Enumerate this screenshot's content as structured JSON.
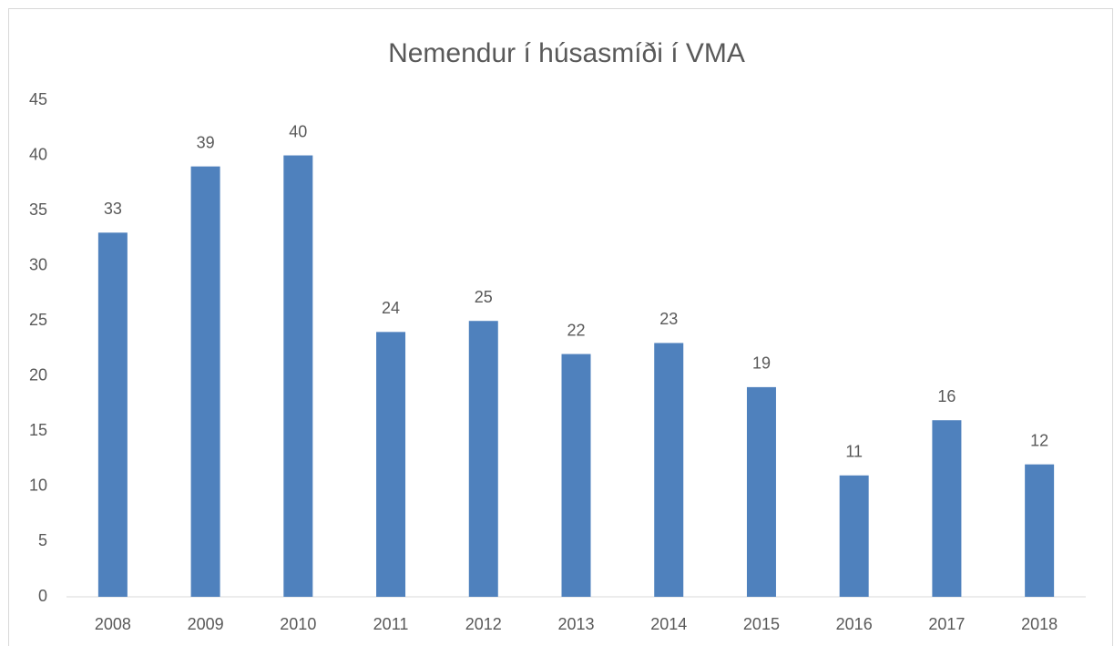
{
  "chart_data": {
    "type": "bar",
    "title": "Nemendur í húsasmíði í VMA",
    "categories": [
      "2008",
      "2009",
      "2010",
      "2011",
      "2012",
      "2013",
      "2014",
      "2015",
      "2016",
      "2017",
      "2018"
    ],
    "values": [
      33,
      39,
      40,
      24,
      25,
      22,
      23,
      19,
      11,
      16,
      12
    ],
    "color": "#4f81bd",
    "ylim": [
      0,
      45
    ],
    "yticks": [
      0,
      5,
      10,
      15,
      20,
      25,
      30,
      35,
      40,
      45
    ],
    "grid": false,
    "data_labels": true
  }
}
